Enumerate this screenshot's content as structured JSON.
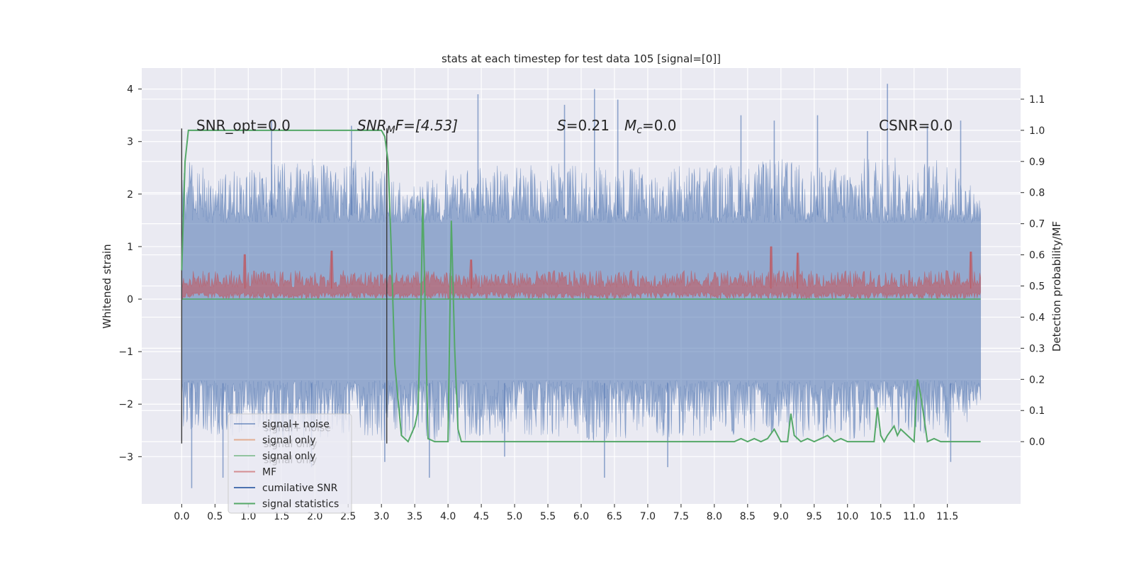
{
  "chart_data": {
    "type": "line",
    "title": "stats at each timestep for test data 105 [signal=[0]]",
    "xlabel": "",
    "ylabel_left": "Whitened strain",
    "ylabel_right": "Detection probability/MF",
    "xlim": [
      -0.6,
      12.6
    ],
    "ylim_left": [
      -3.9,
      4.4
    ],
    "ylim_right": [
      -0.2,
      1.2
    ],
    "x_ticks": [
      "0.0",
      "0.5",
      "1.0",
      "1.5",
      "2.0",
      "2.5",
      "3.0",
      "3.5",
      "4.0",
      "4.5",
      "5.0",
      "5.5",
      "6.0",
      "6.5",
      "7.0",
      "7.5",
      "8.0",
      "8.5",
      "9.0",
      "9.5",
      "10.0",
      "10.5",
      "11.0",
      "11.5"
    ],
    "y_ticks_left": [
      "4",
      "3",
      "2",
      "1",
      "0",
      "−1",
      "−2",
      "−3"
    ],
    "y_ticks_right": [
      "1.1",
      "1.0",
      "0.9",
      "0.8",
      "0.7",
      "0.6",
      "0.5",
      "0.4",
      "0.3",
      "0.2",
      "0.1",
      "0.0"
    ],
    "grid": true,
    "legend_position": "lower-left",
    "colors": {
      "signal_noise": "#4c72b0",
      "signal_only_a": "#dd8452",
      "signal_only_b": "#55a868",
      "mf": "#c44e52",
      "cumulative_snr": "#4c72b0",
      "signal_statistics": "#55a868",
      "background": "#eaeaf2"
    },
    "annotations": {
      "snr_opt": "SNR_opt=0.0",
      "snr_mf_sym": "SNR",
      "snr_mf_sub": "M",
      "snr_mf_rest": "F=[4.53]",
      "s_sym": "S",
      "s_val": "=0.21",
      "mc_sym": "M",
      "mc_sub": "c",
      "mc_val": "=0.0",
      "csnr": "CSNR=0.0"
    },
    "legend": [
      {
        "label": "signal+ noise",
        "color": "#4c72b0",
        "alpha": 0.6
      },
      {
        "label": "signal only",
        "color": "#dd8452",
        "alpha": 0.6
      },
      {
        "label": "signal only",
        "color": "#55a868",
        "alpha": 0.6
      },
      {
        "label": "MF",
        "color": "#c44e52",
        "alpha": 0.6
      },
      {
        "label": "cumilative SNR",
        "color": "#4c72b0",
        "alpha": 1
      },
      {
        "label": "signal statistics",
        "color": "#55a868",
        "alpha": 1
      }
    ],
    "ghost_legend": [
      "signal+ noise",
      "signal only",
      "signal only"
    ],
    "series": [
      {
        "name": "signal+ noise",
        "axis": "left",
        "style": "noise",
        "x_range": [
          0.0,
          12.0
        ],
        "upper_envelope": [
          [
            0.0,
            2.7
          ],
          [
            0.5,
            2.4
          ],
          [
            1.0,
            2.5
          ],
          [
            1.5,
            2.6
          ],
          [
            2.0,
            2.7
          ],
          [
            2.5,
            2.7
          ],
          [
            3.0,
            2.5
          ],
          [
            3.5,
            2.2
          ],
          [
            4.0,
            2.5
          ],
          [
            4.5,
            2.6
          ],
          [
            5.0,
            2.5
          ],
          [
            5.5,
            2.6
          ],
          [
            6.0,
            2.6
          ],
          [
            6.5,
            2.6
          ],
          [
            7.0,
            2.5
          ],
          [
            7.5,
            2.6
          ],
          [
            8.0,
            2.6
          ],
          [
            8.5,
            2.6
          ],
          [
            9.0,
            2.7
          ],
          [
            9.5,
            2.5
          ],
          [
            10.0,
            2.6
          ],
          [
            10.5,
            2.8
          ],
          [
            11.0,
            2.6
          ],
          [
            11.5,
            2.7
          ],
          [
            12.0,
            2.0
          ]
        ],
        "lower_envelope": [
          [
            0.0,
            -2.5
          ],
          [
            0.5,
            -2.6
          ],
          [
            1.0,
            -2.6
          ],
          [
            1.5,
            -2.7
          ],
          [
            2.0,
            -2.7
          ],
          [
            2.5,
            -2.6
          ],
          [
            3.0,
            -2.7
          ],
          [
            3.5,
            -2.6
          ],
          [
            4.0,
            -2.8
          ],
          [
            4.5,
            -2.6
          ],
          [
            5.0,
            -2.6
          ],
          [
            5.5,
            -2.6
          ],
          [
            6.0,
            -2.7
          ],
          [
            6.5,
            -2.7
          ],
          [
            7.0,
            -2.6
          ],
          [
            7.5,
            -2.7
          ],
          [
            8.0,
            -2.6
          ],
          [
            8.5,
            -2.6
          ],
          [
            9.0,
            -2.7
          ],
          [
            9.5,
            -2.7
          ],
          [
            10.0,
            -2.7
          ],
          [
            10.5,
            -2.6
          ],
          [
            11.0,
            -2.6
          ],
          [
            11.5,
            -2.7
          ],
          [
            12.0,
            -2.1
          ]
        ],
        "spikes": [
          [
            0.15,
            -3.6
          ],
          [
            0.62,
            -3.4
          ],
          [
            1.35,
            3.4
          ],
          [
            1.95,
            -3.2
          ],
          [
            2.55,
            3.3
          ],
          [
            3.05,
            -3.1
          ],
          [
            3.72,
            -3.4
          ],
          [
            4.45,
            3.9
          ],
          [
            4.85,
            -3.0
          ],
          [
            5.75,
            3.7
          ],
          [
            6.2,
            4.0
          ],
          [
            6.35,
            -3.4
          ],
          [
            6.55,
            3.8
          ],
          [
            7.3,
            -3.2
          ],
          [
            8.4,
            3.5
          ],
          [
            8.9,
            3.4
          ],
          [
            9.55,
            3.5
          ],
          [
            10.3,
            3.2
          ],
          [
            10.6,
            4.1
          ],
          [
            11.2,
            3.3
          ],
          [
            11.55,
            -3.1
          ],
          [
            11.7,
            3.4
          ]
        ]
      },
      {
        "name": "MF",
        "axis": "left",
        "style": "band",
        "x_range": [
          0.0,
          12.0
        ],
        "upper": 0.55,
        "lower": 0.0,
        "peaks": [
          [
            0.95,
            0.85
          ],
          [
            2.25,
            0.92
          ],
          [
            4.35,
            0.75
          ],
          [
            8.85,
            1.0
          ],
          [
            9.25,
            0.88
          ],
          [
            11.85,
            0.9
          ]
        ]
      },
      {
        "name": "signal only",
        "axis": "left",
        "style": "flat",
        "x": [
          0.0,
          12.0
        ],
        "y": [
          0.0,
          0.0
        ]
      },
      {
        "name": "cumilative SNR",
        "axis": "left",
        "style": "vlines",
        "lines": [
          [
            0.0,
            -2.75,
            3.25
          ],
          [
            3.08,
            -2.75,
            3.25
          ]
        ]
      },
      {
        "name": "signal statistics",
        "axis": "right",
        "x": [
          0.0,
          0.05,
          0.1,
          0.5,
          1.0,
          2.0,
          3.0,
          3.05,
          3.1,
          3.15,
          3.2,
          3.3,
          3.4,
          3.5,
          3.55,
          3.6,
          3.62,
          3.65,
          3.7,
          3.8,
          3.9,
          4.0,
          4.05,
          4.1,
          4.15,
          4.2,
          4.5,
          5.0,
          6.0,
          7.0,
          8.0,
          8.2,
          8.3,
          8.4,
          8.5,
          8.6,
          8.7,
          8.8,
          8.9,
          9.0,
          9.1,
          9.15,
          9.2,
          9.3,
          9.4,
          9.5,
          9.6,
          9.7,
          9.8,
          9.9,
          10.0,
          10.2,
          10.4,
          10.45,
          10.5,
          10.55,
          10.6,
          10.7,
          10.75,
          10.8,
          10.9,
          11.0,
          11.05,
          11.1,
          11.2,
          11.3,
          11.4,
          11.5,
          12.0
        ],
        "y": [
          0.55,
          0.9,
          1.0,
          1.0,
          1.0,
          1.0,
          1.0,
          0.98,
          0.9,
          0.6,
          0.25,
          0.02,
          0.0,
          0.05,
          0.1,
          0.5,
          0.78,
          0.5,
          0.01,
          0.0,
          0.0,
          0.0,
          0.71,
          0.3,
          0.04,
          0.0,
          0.0,
          0.0,
          0.0,
          0.0,
          0.0,
          0.0,
          0.0,
          0.01,
          0.0,
          0.01,
          0.0,
          0.01,
          0.04,
          0.0,
          0.0,
          0.09,
          0.02,
          0.0,
          0.01,
          0.0,
          0.01,
          0.02,
          0.0,
          0.01,
          0.0,
          0.0,
          0.0,
          0.11,
          0.02,
          0.0,
          0.02,
          0.05,
          0.02,
          0.04,
          0.02,
          0.0,
          0.2,
          0.15,
          0.0,
          0.01,
          0.0,
          0.0,
          0.0
        ]
      }
    ]
  }
}
